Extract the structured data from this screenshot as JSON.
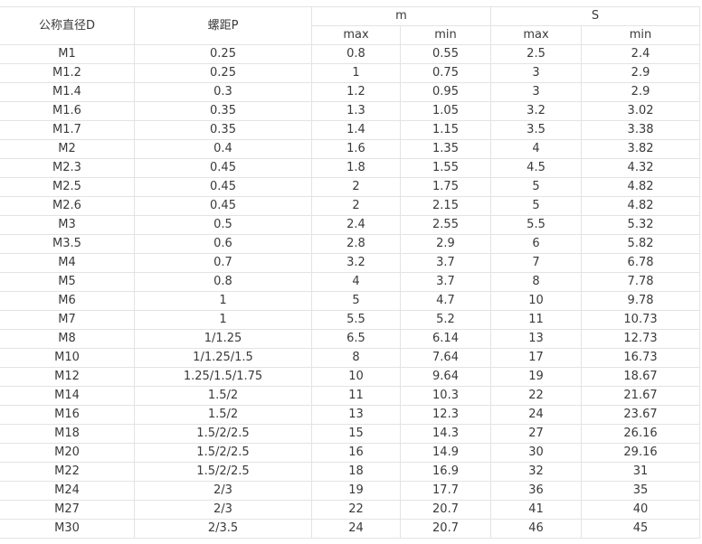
{
  "header": {
    "diameter": "公称直径D",
    "pitch": "螺距P",
    "m": "m",
    "s": "S",
    "max": "max",
    "min": "min"
  },
  "rows": [
    [
      "M1",
      "0.25",
      "0.8",
      "0.55",
      "2.5",
      "2.4"
    ],
    [
      "M1.2",
      "0.25",
      "1",
      "0.75",
      "3",
      "2.9"
    ],
    [
      "M1.4",
      "0.3",
      "1.2",
      "0.95",
      "3",
      "2.9"
    ],
    [
      "M1.6",
      "0.35",
      "1.3",
      "1.05",
      "3.2",
      "3.02"
    ],
    [
      "M1.7",
      "0.35",
      "1.4",
      "1.15",
      "3.5",
      "3.38"
    ],
    [
      "M2",
      "0.4",
      "1.6",
      "1.35",
      "4",
      "3.82"
    ],
    [
      "M2.3",
      "0.45",
      "1.8",
      "1.55",
      "4.5",
      "4.32"
    ],
    [
      "M2.5",
      "0.45",
      "2",
      "1.75",
      "5",
      "4.82"
    ],
    [
      "M2.6",
      "0.45",
      "2",
      "2.15",
      "5",
      "4.82"
    ],
    [
      "M3",
      "0.5",
      "2.4",
      "2.55",
      "5.5",
      "5.32"
    ],
    [
      "M3.5",
      "0.6",
      "2.8",
      "2.9",
      "6",
      "5.82"
    ],
    [
      "M4",
      "0.7",
      "3.2",
      "3.7",
      "7",
      "6.78"
    ],
    [
      "M5",
      "0.8",
      "4",
      "3.7",
      "8",
      "7.78"
    ],
    [
      "M6",
      "1",
      "5",
      "4.7",
      "10",
      "9.78"
    ],
    [
      "M7",
      "1",
      "5.5",
      "5.2",
      "11",
      "10.73"
    ],
    [
      "M8",
      "1/1.25",
      "6.5",
      "6.14",
      "13",
      "12.73"
    ],
    [
      "M10",
      "1/1.25/1.5",
      "8",
      "7.64",
      "17",
      "16.73"
    ],
    [
      "M12",
      "1.25/1.5/1.75",
      "10",
      "9.64",
      "19",
      "18.67"
    ],
    [
      "M14",
      "1.5/2",
      "11",
      "10.3",
      "22",
      "21.67"
    ],
    [
      "M16",
      "1.5/2",
      "13",
      "12.3",
      "24",
      "23.67"
    ],
    [
      "M18",
      "1.5/2/2.5",
      "15",
      "14.3",
      "27",
      "26.16"
    ],
    [
      "M20",
      "1.5/2/2.5",
      "16",
      "14.9",
      "30",
      "29.16"
    ],
    [
      "M22",
      "1.5/2/2.5",
      "18",
      "16.9",
      "32",
      "31"
    ],
    [
      "M24",
      "2/3",
      "19",
      "17.7",
      "36",
      "35"
    ],
    [
      "M27",
      "2/3",
      "22",
      "20.7",
      "41",
      "40"
    ],
    [
      "M30",
      "2/3.5",
      "24",
      "20.7",
      "46",
      "45"
    ]
  ]
}
